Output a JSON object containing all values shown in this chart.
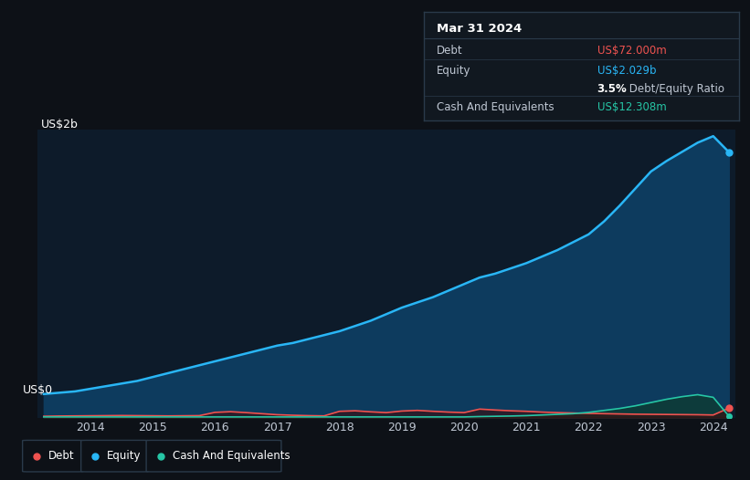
{
  "background_color": "#0d1117",
  "plot_bg_color": "#0d1b2a",
  "title_box": {
    "date": "Mar 31 2024",
    "debt_label": "Debt",
    "debt_value": "US$72.000m",
    "equity_label": "Equity",
    "equity_value": "US$2.029b",
    "ratio_bold": "3.5%",
    "ratio_text": " Debt/Equity Ratio",
    "cash_label": "Cash And Equivalents",
    "cash_value": "US$12.308m"
  },
  "ylabel": "US$2b",
  "y0label": "US$0",
  "years": [
    2013.25,
    2013.5,
    2013.75,
    2014.0,
    2014.25,
    2014.5,
    2014.75,
    2015.0,
    2015.25,
    2015.5,
    2015.75,
    2016.0,
    2016.25,
    2016.5,
    2016.75,
    2017.0,
    2017.25,
    2017.5,
    2017.75,
    2018.0,
    2018.25,
    2018.5,
    2018.75,
    2019.0,
    2019.25,
    2019.5,
    2019.75,
    2020.0,
    2020.25,
    2020.5,
    2020.75,
    2021.0,
    2021.25,
    2021.5,
    2021.75,
    2022.0,
    2022.25,
    2022.5,
    2022.75,
    2023.0,
    2023.25,
    2023.5,
    2023.75,
    2024.0,
    2024.25
  ],
  "equity": [
    0.18,
    0.19,
    0.2,
    0.22,
    0.24,
    0.26,
    0.28,
    0.31,
    0.34,
    0.37,
    0.4,
    0.43,
    0.46,
    0.49,
    0.52,
    0.55,
    0.57,
    0.6,
    0.63,
    0.66,
    0.7,
    0.74,
    0.79,
    0.84,
    0.88,
    0.92,
    0.97,
    1.02,
    1.07,
    1.1,
    1.14,
    1.18,
    1.23,
    1.28,
    1.34,
    1.4,
    1.5,
    1.62,
    1.75,
    1.88,
    1.96,
    2.03,
    2.1,
    2.15,
    2.029
  ],
  "debt": [
    0.01,
    0.012,
    0.013,
    0.014,
    0.015,
    0.016,
    0.015,
    0.014,
    0.013,
    0.014,
    0.015,
    0.04,
    0.045,
    0.038,
    0.03,
    0.022,
    0.018,
    0.015,
    0.013,
    0.048,
    0.052,
    0.044,
    0.038,
    0.05,
    0.055,
    0.048,
    0.042,
    0.038,
    0.065,
    0.058,
    0.052,
    0.048,
    0.042,
    0.038,
    0.035,
    0.032,
    0.03,
    0.028,
    0.026,
    0.025,
    0.024,
    0.023,
    0.022,
    0.02,
    0.072
  ],
  "cash": [
    0.005,
    0.005,
    0.005,
    0.005,
    0.005,
    0.005,
    0.005,
    0.005,
    0.005,
    0.005,
    0.005,
    0.005,
    0.005,
    0.005,
    0.005,
    0.005,
    0.005,
    0.005,
    0.005,
    0.005,
    0.005,
    0.005,
    0.005,
    0.005,
    0.005,
    0.005,
    0.005,
    0.005,
    0.008,
    0.01,
    0.012,
    0.015,
    0.02,
    0.025,
    0.03,
    0.04,
    0.055,
    0.07,
    0.09,
    0.115,
    0.14,
    0.16,
    0.175,
    0.155,
    0.012308
  ],
  "xticks": [
    2014,
    2015,
    2016,
    2017,
    2018,
    2019,
    2020,
    2021,
    2022,
    2023,
    2024
  ],
  "ylim": [
    0,
    2.2
  ],
  "equity_line_color": "#29b6f6",
  "equity_fill_color": "#0d3b5e",
  "debt_line_color": "#ef5350",
  "debt_fill_color": "#3b0d0d",
  "cash_line_color": "#26c6a6",
  "cash_fill_color": "#0d3b35",
  "grid_color": "#1e2d3d",
  "text_color": "#c0c8d4",
  "legend_border": "#2a3a4a"
}
